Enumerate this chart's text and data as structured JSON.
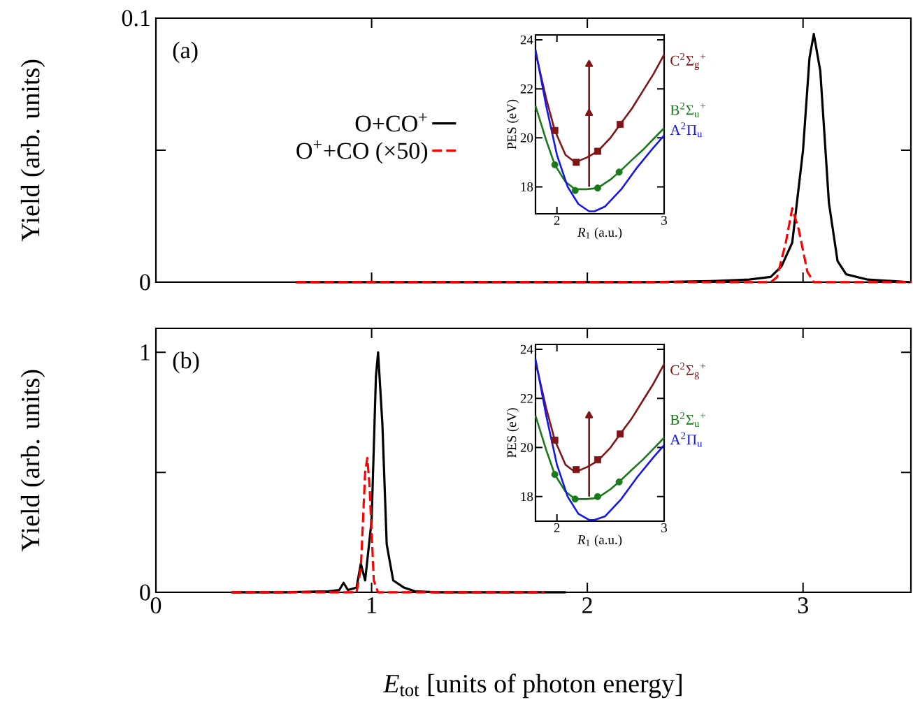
{
  "chart_data": [
    {
      "type": "line",
      "ylabel": "Yield (arb. units)",
      "annotations": [
        "(a)"
      ],
      "xlim": [
        0,
        3.5
      ],
      "ylim": [
        0,
        0.1
      ],
      "xticks": [
        0,
        1,
        2,
        3
      ],
      "yticks": [
        0,
        {
          "value": 0.05,
          "label": null
        },
        0.1
      ],
      "tick_labels": "y",
      "legend": "left",
      "series": [
        {
          "name": "O+CO$^{+}$",
          "color": "#000000",
          "line_style": "solid",
          "x": [
            0.65,
            1.5,
            2.3,
            2.6,
            2.75,
            2.85,
            2.9,
            2.95,
            3.0,
            3.03,
            3.05,
            3.08,
            3.12,
            3.16,
            3.2,
            3.3,
            3.4,
            3.5
          ],
          "values": [
            0,
            0,
            0,
            0.0005,
            0.001,
            0.002,
            0.006,
            0.015,
            0.05,
            0.085,
            0.094,
            0.08,
            0.03,
            0.008,
            0.003,
            0.001,
            0.0005,
            0
          ]
        },
        {
          "name": "O$^{+}$+CO (×50)",
          "color": "#ff0000",
          "line_style": "dashed",
          "x": [
            0.65,
            1.5,
            2.5,
            2.85,
            2.88,
            2.92,
            2.95,
            2.98,
            3.02,
            3.05,
            3.5
          ],
          "values": [
            0,
            0,
            0,
            0,
            0.002,
            0.015,
            0.028,
            0.02,
            0.004,
            0,
            0
          ]
        }
      ]
    },
    {
      "type": "line",
      "xlabel": "*R*$_{1}$ (a.u.)",
      "ylabel": "PES (eV)",
      "xlim": [
        1.8,
        3
      ],
      "ylim": [
        16.9,
        24.2
      ],
      "xticks": [
        2,
        3
      ],
      "yticks": [
        18,
        20,
        22,
        24
      ],
      "series": [
        {
          "name": "C$^{2}$Σ$_{g}$$^{+}$",
          "color": "#7f1515",
          "x": [
            1.8,
            1.9,
            1.98,
            2.08,
            2.17,
            2.28,
            2.38,
            2.5,
            2.59,
            2.7,
            2.8,
            2.9,
            3.0
          ],
          "values": [
            23.5,
            21.6,
            20.3,
            19.3,
            19.0,
            19.2,
            19.45,
            20.0,
            20.55,
            21.2,
            21.9,
            22.6,
            23.4
          ]
        },
        {
          "name": "B$^{2}$Σ$_{u}$$^{+}$",
          "color": "#1a7a1a",
          "x": [
            1.8,
            1.9,
            1.98,
            2.08,
            2.17,
            2.28,
            2.38,
            2.5,
            2.58,
            2.7,
            2.8,
            2.9,
            3.0
          ],
          "values": [
            21.3,
            19.9,
            18.9,
            18.2,
            17.9,
            17.9,
            17.95,
            18.3,
            18.6,
            19.1,
            19.5,
            19.95,
            20.4
          ]
        },
        {
          "name": "A$^{2}$Π$_{u}$",
          "color": "#1515ee",
          "x": [
            1.8,
            1.9,
            2.0,
            2.1,
            2.2,
            2.3,
            2.35,
            2.45,
            2.6,
            2.75,
            2.9,
            3.0
          ],
          "values": [
            23.6,
            21.3,
            19.3,
            18.0,
            17.3,
            17.0,
            17.0,
            17.2,
            17.9,
            18.8,
            19.6,
            20.1
          ]
        },
        {
          "type": "scatter",
          "color": "#7f1515",
          "marker": "square",
          "x": [
            1.98,
            2.18,
            2.38,
            2.59
          ],
          "values": [
            20.3,
            19.0,
            19.45,
            20.55
          ]
        },
        {
          "type": "scatter",
          "color": "#1a7a1a",
          "marker": "circle",
          "x": [
            1.98,
            2.17,
            2.38,
            2.58
          ],
          "values": [
            18.9,
            17.85,
            17.95,
            18.6
          ]
        },
        {
          "color": "#7f1515",
          "marker": "triangle",
          "x": [
            2.3,
            2.3,
            2.3
          ],
          "values": [
            18,
            21,
            23
          ]
        }
      ]
    },
    {
      "type": "line",
      "xlabel": "*E*$_{tot}$ [units of photon energy]",
      "ylabel": "Yield (arb. units)",
      "annotations": [
        "(b)"
      ],
      "xlim": [
        0,
        3.5
      ],
      "ylim": [
        0,
        1.1
      ],
      "xticks": [
        0,
        1,
        2,
        3
      ],
      "yticks": [
        0,
        {
          "value": 0.5,
          "label": null
        },
        1
      ],
      "series": [
        {
          "color": "#000000",
          "line_style": "solid",
          "x": [
            0.35,
            0.6,
            0.8,
            0.85,
            0.87,
            0.89,
            0.93,
            0.95,
            0.97,
            1.0,
            1.02,
            1.03,
            1.05,
            1.07,
            1.1,
            1.15,
            1.2,
            1.3,
            1.9
          ],
          "values": [
            0,
            0,
            0.005,
            0.01,
            0.04,
            0.01,
            0.02,
            0.12,
            0.05,
            0.3,
            0.9,
            1.0,
            0.7,
            0.2,
            0.05,
            0.02,
            0.005,
            0,
            0
          ]
        },
        {
          "color": "#ff0000",
          "line_style": "dashed",
          "x": [
            0.35,
            0.93,
            0.95,
            0.97,
            0.98,
            0.99,
            1.01,
            1.03,
            1.8
          ],
          "values": [
            0,
            0,
            0.1,
            0.5,
            0.56,
            0.45,
            0.05,
            0,
            0
          ]
        }
      ]
    },
    {
      "type": "line",
      "xlabel": "*R*$_{1}$ (a.u.)",
      "ylabel": "PES (eV)",
      "xlim": [
        1.8,
        3
      ],
      "ylim": [
        17,
        24.2
      ],
      "xticks": [
        2,
        3
      ],
      "yticks": [
        18,
        20,
        22,
        24
      ],
      "series": [
        {
          "name": "C$^{2}$Σ$_{g}$$^{+}$",
          "color": "#7f1515",
          "x": [
            1.8,
            1.9,
            1.98,
            2.08,
            2.17,
            2.28,
            2.38,
            2.5,
            2.59,
            2.7,
            2.8,
            2.9,
            3.0
          ],
          "values": [
            23.5,
            21.6,
            20.3,
            19.3,
            19.0,
            19.2,
            19.45,
            20.0,
            20.55,
            21.2,
            21.9,
            22.6,
            23.4
          ]
        },
        {
          "name": "B$^{2}$Σ$_{u}$$^{+}$",
          "color": "#1a7a1a",
          "x": [
            1.8,
            1.9,
            1.98,
            2.08,
            2.17,
            2.28,
            2.38,
            2.5,
            2.58,
            2.7,
            2.8,
            2.9,
            3.0
          ],
          "values": [
            21.3,
            19.9,
            18.9,
            18.2,
            17.9,
            17.9,
            17.95,
            18.3,
            18.6,
            19.1,
            19.5,
            19.95,
            20.4
          ]
        },
        {
          "name": "A$^{2}$Π$_{u}$",
          "color": "#1515ee",
          "x": [
            1.8,
            1.9,
            2.0,
            2.1,
            2.2,
            2.3,
            2.35,
            2.45,
            2.6,
            2.75,
            2.9,
            3.0
          ],
          "values": [
            23.6,
            21.3,
            19.3,
            18.0,
            17.3,
            17.05,
            17.05,
            17.2,
            17.9,
            18.8,
            19.6,
            20.1
          ]
        },
        {
          "type": "scatter",
          "color": "#7f1515",
          "marker": "square",
          "x": [
            1.98,
            2.18,
            2.38,
            2.59
          ],
          "values": [
            20.3,
            19.1,
            19.5,
            20.55
          ]
        },
        {
          "type": "scatter",
          "color": "#1a7a1a",
          "marker": "circle",
          "x": [
            1.98,
            2.17,
            2.38,
            2.58
          ],
          "values": [
            18.9,
            17.9,
            18.0,
            18.6
          ]
        },
        {
          "color": "#7f1515",
          "marker": "triangle",
          "x": [
            2.3,
            2.3
          ],
          "values": [
            18,
            21.3
          ]
        }
      ]
    }
  ]
}
